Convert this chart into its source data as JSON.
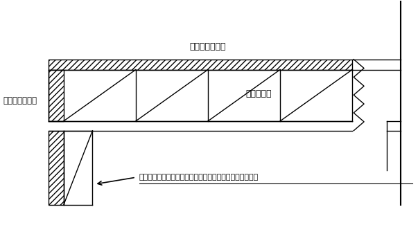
{
  "bg_color": "#ffffff",
  "line_color": "#000000",
  "label_melamine_top": "メラミン化粧板",
  "label_panel": "基板パネル",
  "label_melamine_left": "メラミン化粧板",
  "label_arrow": "縁に桟やパネル取付で厚み（高さ）を増す事もできます。"
}
